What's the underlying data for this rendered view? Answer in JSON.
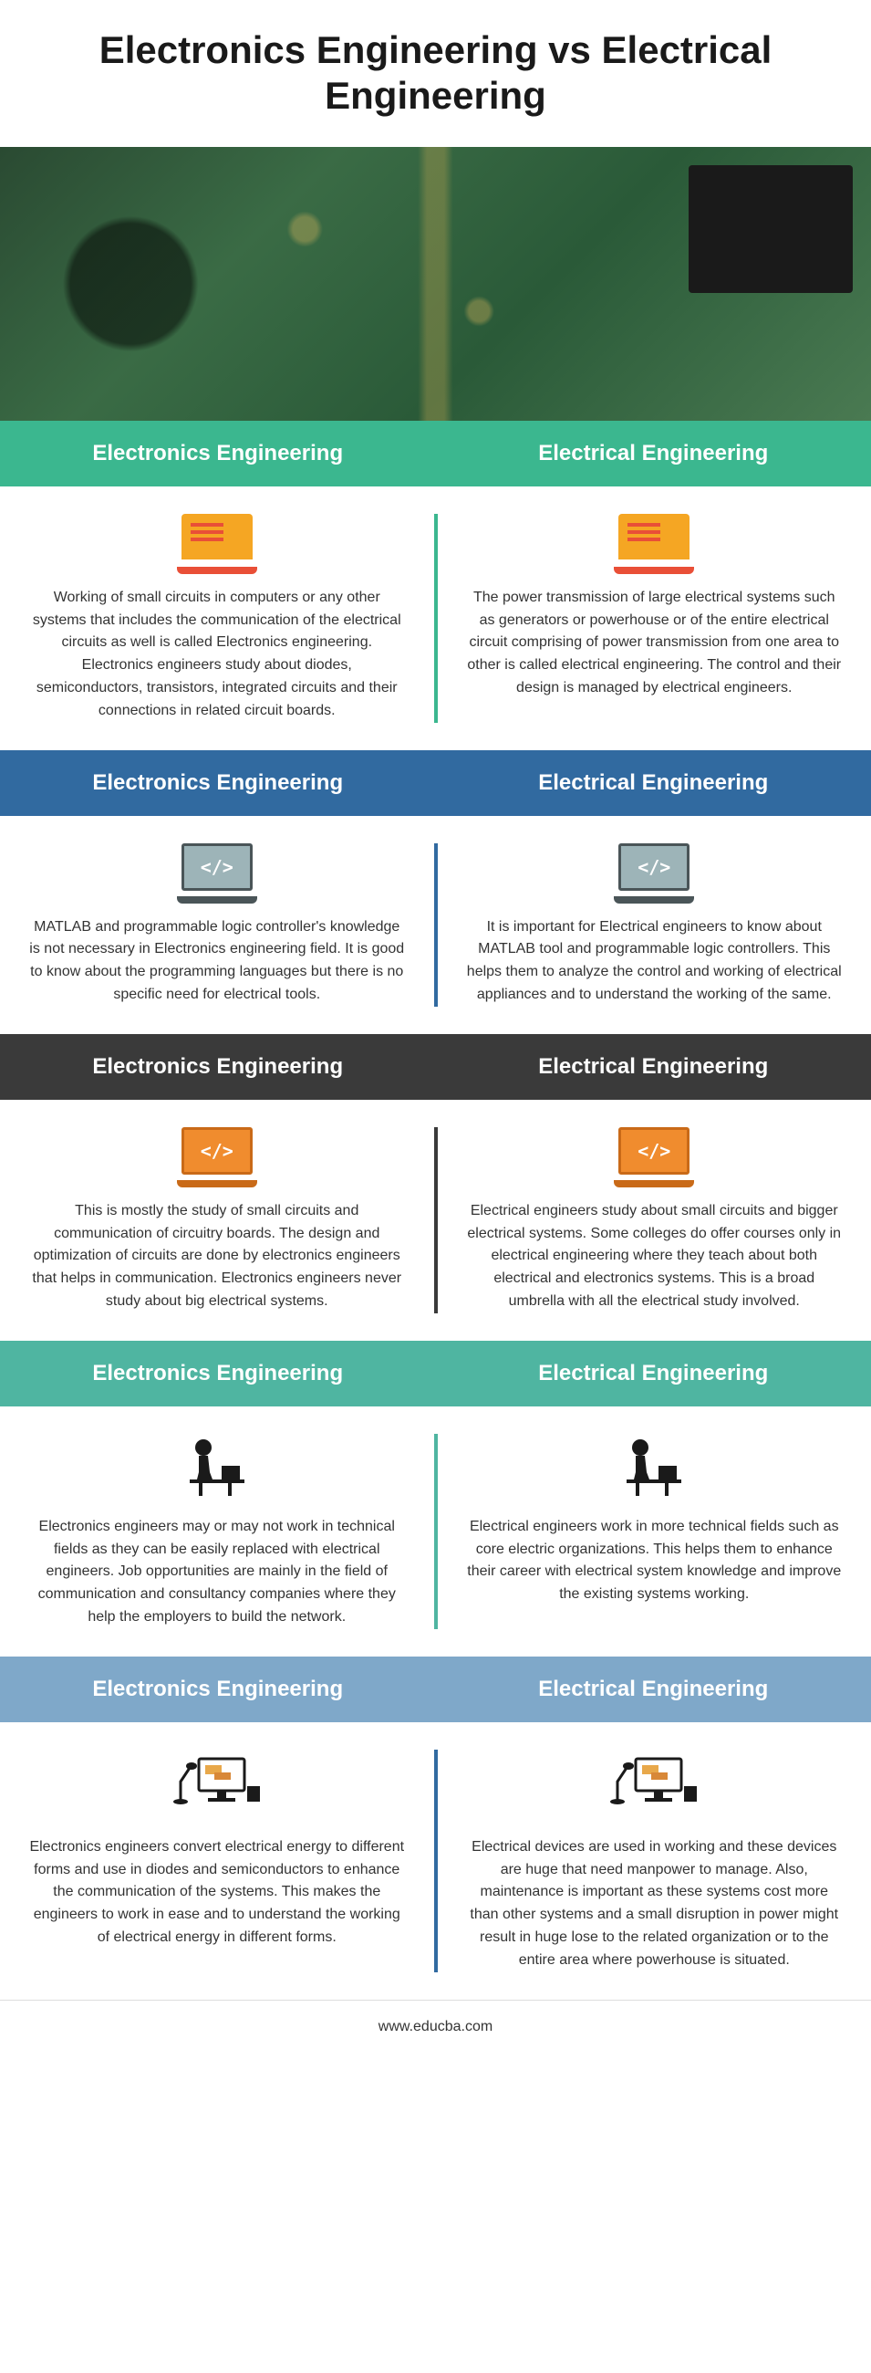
{
  "title": "Electronics Engineering vs Electrical Engineering",
  "footer": "www.educba.com",
  "colors": {
    "green": "#3bb78f",
    "blue": "#316aa0",
    "dark": "#3a3a3a",
    "teal": "#4fb5a1",
    "lightblue": "#7fa8c9",
    "icon_orange_body": "#f5a623",
    "icon_orange_line": "#e94f37",
    "icon_code_gray": "#9db4b8",
    "icon_code_frame": "#4a5558",
    "icon_code_orange": "#f08c2e",
    "icon_code_oframe": "#c96a18",
    "black": "#1a1a1a"
  },
  "sections": [
    {
      "header_bg": "green",
      "divider": "green",
      "icon": "laptop-orange",
      "left_title": "Electronics Engineering",
      "right_title": "Electrical Engineering",
      "left_text": "Working of small circuits in computers or any other systems that includes the communication of the electrical circuits as well is called Electronics engineering. Electronics engineers study about diodes, semiconductors, transistors, integrated circuits and their connections in related circuit boards.",
      "right_text": "The power transmission of large electrical systems such as generators or powerhouse or of the entire electrical circuit comprising of power transmission from one area to other is called electrical engineering. The control and their design is managed by electrical engineers."
    },
    {
      "header_bg": "blue",
      "divider": "blue",
      "icon": "code-gray",
      "left_title": "Electronics Engineering",
      "right_title": "Electrical Engineering",
      "left_text": "MATLAB and programmable logic controller's knowledge is not necessary in Electronics engineering field. It is good to know about the programming languages but there is no specific need for electrical tools.",
      "right_text": "It is important for Electrical engineers to know about MATLAB tool and programmable logic controllers. This helps them to analyze the control and working of electrical appliances and to understand the working of the same."
    },
    {
      "header_bg": "dark",
      "divider": "dark",
      "icon": "code-orange",
      "left_title": "Electronics Engineering",
      "right_title": "Electrical Engineering",
      "left_text": "This is mostly the study of small circuits and communication of circuitry boards. The design and optimization of circuits are done by electronics engineers that helps in communication. Electronics engineers never study about big electrical systems.",
      "right_text": "Electrical engineers study about small circuits and bigger electrical systems. Some colleges do offer courses only in electrical engineering where they teach about both electrical and electronics systems. This is a broad umbrella with all the electrical study involved."
    },
    {
      "header_bg": "teal",
      "divider": "teal",
      "icon": "person",
      "left_title": "Electronics Engineering",
      "right_title": "Electrical Engineering",
      "left_text": "Electronics engineers may or may not work in technical fields as they can be easily replaced with electrical engineers. Job opportunities are mainly in the field of communication and consultancy companies where they help the employers to build the network.",
      "right_text": "Electrical engineers work in more technical fields such as core electric organizations. This helps them to enhance their career with electrical system knowledge and improve the existing systems working."
    },
    {
      "header_bg": "lightblue",
      "divider": "blue",
      "icon": "desktop",
      "left_title": "Electronics Engineering",
      "right_title": "Electrical Engineering",
      "left_text": "Electronics engineers convert electrical energy to different forms and use in diodes and semiconductors to enhance the communication of the systems. This makes the engineers to work in ease and to understand the working of electrical energy in different forms.",
      "right_text": "Electrical devices are used in working and these devices are huge that need manpower to manage. Also, maintenance is important as these systems cost more than other systems and a small disruption in power might result in huge lose to the related organization or to the entire area where powerhouse is situated."
    }
  ]
}
